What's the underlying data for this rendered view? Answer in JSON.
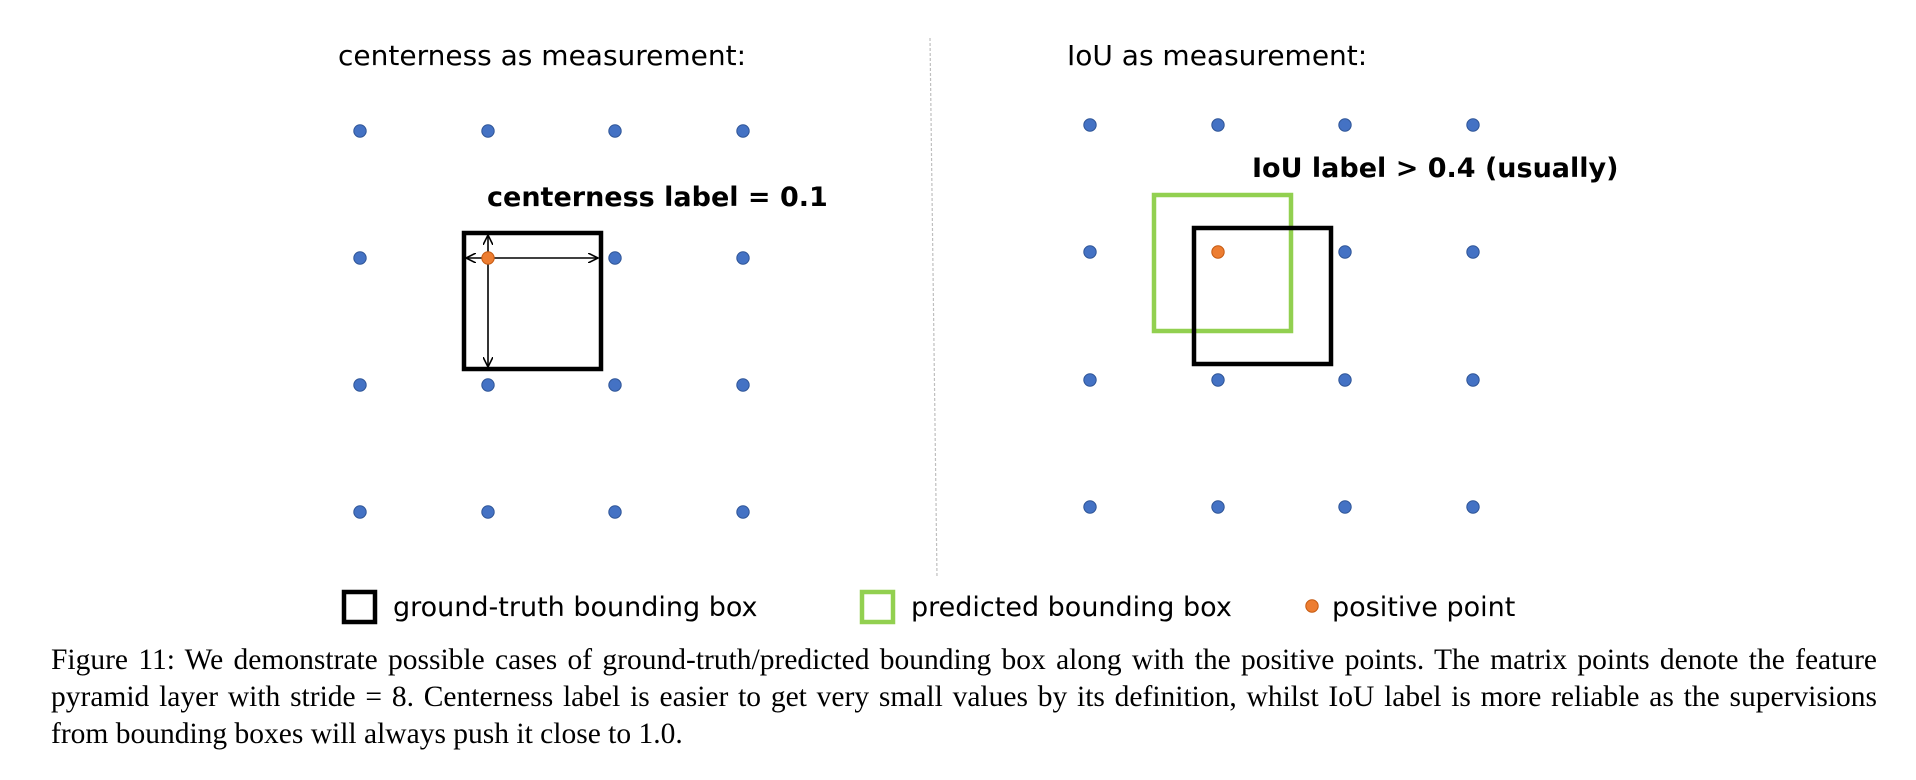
{
  "panels": [
    {
      "id": "centerness",
      "title": "centerness as measurement:",
      "label": "centerness label = 0.1"
    },
    {
      "id": "iou",
      "title": "IoU as measurement:",
      "label": "IoU label > 0.4 (usually)"
    }
  ],
  "legend": {
    "gt": "ground-truth bounding box",
    "pred": "predicted bounding box",
    "pos": "positive point"
  },
  "colors": {
    "grid_point": "#4472C4",
    "grid_point_edge": "#2F5597",
    "positive_point": "#ED7D31",
    "gt_box": "#000000",
    "pred_box": "#92D050",
    "divider": "#BFBFBF"
  },
  "caption": {
    "text": "Figure 11: We demonstrate possible cases of ground-truth/predicted bounding box along with the positive points. The matrix points denote the feature pyramid layer with stride = 8. Centerness label is easier to get very small values by its definition, whilst IoU label is more reliable as the supervisions from bounding boxes will always push it close to 1.0."
  }
}
